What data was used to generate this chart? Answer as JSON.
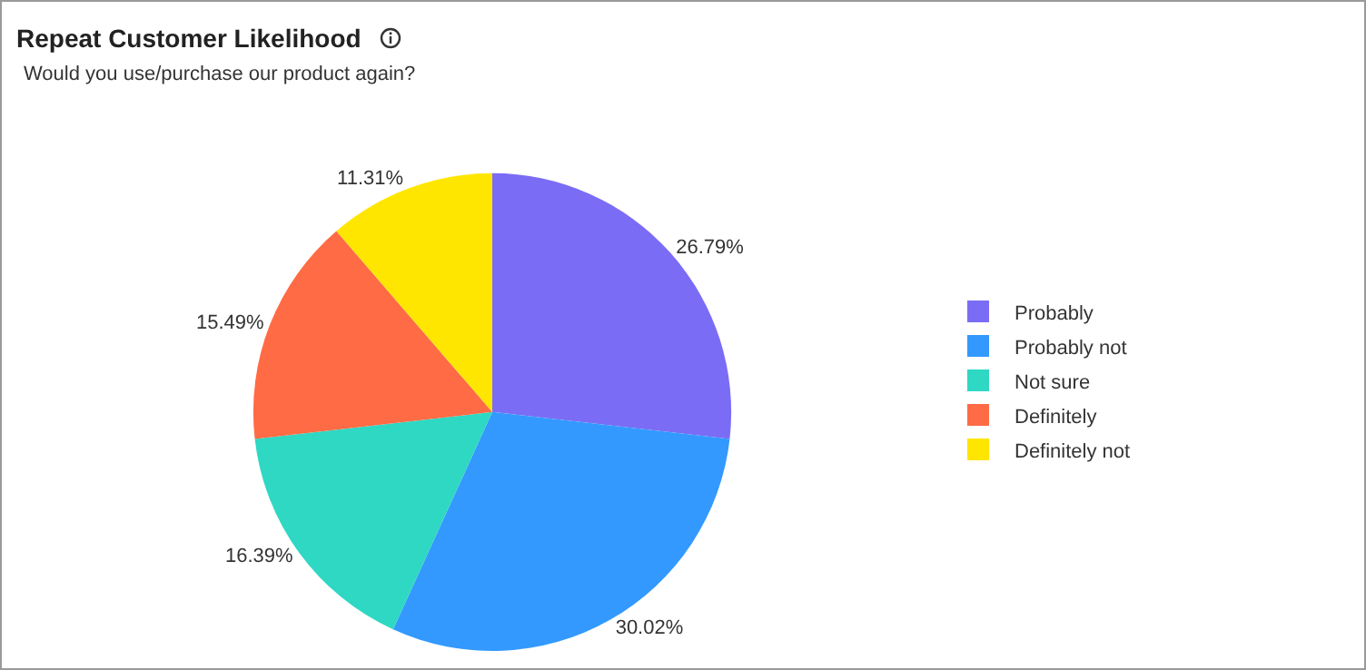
{
  "chart_data": {
    "type": "pie",
    "title": "Repeat Customer Likelihood",
    "subtitle": "Would you use/purchase our product again?",
    "categories": [
      "Probably",
      "Probably not",
      "Not sure",
      "Definitely",
      "Definitely not"
    ],
    "values": [
      26.79,
      30.02,
      16.39,
      15.49,
      11.31
    ],
    "value_labels": [
      "26.79%",
      "30.02%",
      "16.39%",
      "15.49%",
      "11.31%"
    ],
    "colors": [
      "#7b6cf6",
      "#3399ff",
      "#2ed8c3",
      "#ff6b45",
      "#ffe600"
    ],
    "legend": "right"
  }
}
